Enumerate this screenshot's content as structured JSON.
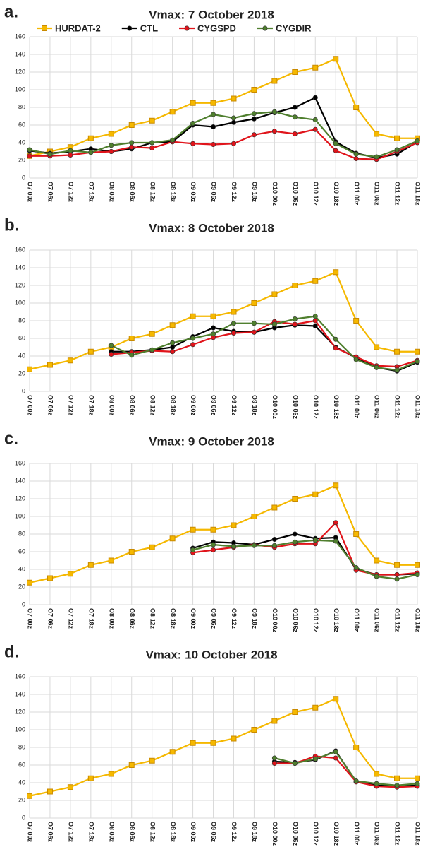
{
  "chart_data": [
    {
      "type": "line",
      "label": "a.",
      "title": "Vmax: 7 October 2018",
      "legend": true,
      "grid": true,
      "categories": [
        "O7 00z",
        "O7 06z",
        "O7 12z",
        "O7 18z",
        "O8 00z",
        "O8 06z",
        "O8 12z",
        "O8 18z",
        "O9 00z",
        "O9 06z",
        "O9 12z",
        "O9 18z",
        "O10 00z",
        "O10 06z",
        "O10 12z",
        "O10 18z",
        "O11 00z",
        "O11 06z",
        "O11 12z",
        "O11 18z"
      ],
      "ylim": [
        0,
        160
      ],
      "yticks": [
        0,
        20,
        40,
        60,
        80,
        100,
        120,
        140,
        160
      ],
      "series": [
        {
          "name": "HURDAT-2",
          "color": "#f5b800",
          "marker": "square",
          "values": [
            25,
            30,
            35,
            45,
            50,
            60,
            65,
            75,
            85,
            85,
            90,
            100,
            110,
            120,
            125,
            135,
            80,
            50,
            45,
            45
          ]
        },
        {
          "name": "CTL",
          "color": "#000000",
          "marker": "circle",
          "values": [
            31,
            28,
            30,
            33,
            30,
            33,
            40,
            41,
            60,
            58,
            63,
            67,
            74,
            80,
            91,
            41,
            28,
            23,
            27,
            41
          ]
        },
        {
          "name": "CYGSPD",
          "color": "#e0141b",
          "marker": "circle",
          "values": [
            25,
            25,
            26,
            29,
            30,
            35,
            34,
            41,
            39,
            38,
            39,
            49,
            53,
            50,
            55,
            31,
            22,
            21,
            30,
            40
          ]
        },
        {
          "name": "CYGDIR",
          "color": "#4f7f2e",
          "marker": "circle",
          "values": [
            32,
            27,
            31,
            29,
            37,
            40,
            40,
            43,
            62,
            72,
            68,
            73,
            75,
            69,
            66,
            39,
            27,
            24,
            32,
            42
          ]
        }
      ]
    },
    {
      "type": "line",
      "label": "b.",
      "title": "Vmax: 8 October 2018",
      "legend": false,
      "grid": true,
      "categories": [
        "O7 00z",
        "O7 06z",
        "O7 12z",
        "O7 18z",
        "O8 00z",
        "O8 06z",
        "O8 12z",
        "O8 18z",
        "O9 00z",
        "O9 06z",
        "O9 12z",
        "O9 18z",
        "O10 00z",
        "O10 06z",
        "O10 12z",
        "O10 18z",
        "O11 00z",
        "O11 06z",
        "O11 12z",
        "O11 18z"
      ],
      "ylim": [
        0,
        160
      ],
      "yticks": [
        0,
        20,
        40,
        60,
        80,
        100,
        120,
        140,
        160
      ],
      "series": [
        {
          "color": "#f5b800",
          "marker": "square",
          "values": [
            25,
            30,
            35,
            45,
            50,
            60,
            65,
            75,
            85,
            85,
            90,
            100,
            110,
            120,
            125,
            135,
            80,
            50,
            45,
            45
          ]
        },
        {
          "color": "#000000",
          "marker": "circle",
          "values": [
            null,
            null,
            null,
            null,
            45,
            45,
            47,
            50,
            62,
            72,
            68,
            67,
            72,
            75,
            74,
            50,
            38,
            27,
            23,
            33
          ]
        },
        {
          "color": "#e0141b",
          "marker": "circle",
          "values": [
            null,
            null,
            null,
            null,
            42,
            44,
            46,
            45,
            53,
            61,
            66,
            67,
            79,
            76,
            80,
            49,
            39,
            29,
            28,
            35
          ]
        },
        {
          "color": "#4f7f2e",
          "marker": "circle",
          "values": [
            null,
            null,
            null,
            null,
            52,
            41,
            47,
            55,
            60,
            65,
            77,
            77,
            76,
            82,
            85,
            59,
            36,
            27,
            24,
            34
          ]
        }
      ]
    },
    {
      "type": "line",
      "label": "c.",
      "title": "Vmax: 9 October 2018",
      "legend": false,
      "grid": true,
      "categories": [
        "O7 00z",
        "O7 06z",
        "O7 12z",
        "O7 18z",
        "O8 00z",
        "O8 06z",
        "O8 12z",
        "O8 18z",
        "O9 00z",
        "O9 06z",
        "O9 12z",
        "O9 18z",
        "O10 00z",
        "O10 06z",
        "O10 12z",
        "O10 18z",
        "O11 00z",
        "O11 06z",
        "O11 12z",
        "O11 18z"
      ],
      "ylim": [
        0,
        160
      ],
      "yticks": [
        0,
        20,
        40,
        60,
        80,
        100,
        120,
        140,
        160
      ],
      "series": [
        {
          "color": "#f5b800",
          "marker": "square",
          "values": [
            25,
            30,
            35,
            45,
            50,
            60,
            65,
            75,
            85,
            85,
            90,
            100,
            110,
            120,
            125,
            135,
            80,
            50,
            45,
            45
          ]
        },
        {
          "color": "#000000",
          "marker": "circle",
          "values": [
            null,
            null,
            null,
            null,
            null,
            null,
            null,
            null,
            64,
            71,
            70,
            68,
            74,
            80,
            75,
            76,
            40,
            34,
            34,
            35
          ]
        },
        {
          "color": "#e0141b",
          "marker": "circle",
          "values": [
            null,
            null,
            null,
            null,
            null,
            null,
            null,
            null,
            59,
            62,
            65,
            68,
            65,
            69,
            69,
            93,
            39,
            34,
            34,
            36
          ]
        },
        {
          "color": "#4f7f2e",
          "marker": "circle",
          "values": [
            null,
            null,
            null,
            null,
            null,
            null,
            null,
            null,
            62,
            68,
            66,
            67,
            67,
            71,
            73,
            72,
            42,
            32,
            29,
            34
          ]
        }
      ]
    },
    {
      "type": "line",
      "label": "d.",
      "title": "Vmax: 10 October 2018",
      "legend": false,
      "grid": true,
      "categories": [
        "O7 00z",
        "O7 06z",
        "O7 12z",
        "O7 18z",
        "O8 00z",
        "O8 06z",
        "O8 12z",
        "O8 18z",
        "O9 00z",
        "O9 06z",
        "O9 12z",
        "O9 18z",
        "O10 00z",
        "O10 06z",
        "O10 12z",
        "O10 18z",
        "O11 00z",
        "O11 06z",
        "O11 12z",
        "O11 18z"
      ],
      "ylim": [
        0,
        160
      ],
      "yticks": [
        0,
        20,
        40,
        60,
        80,
        100,
        120,
        140,
        160
      ],
      "series": [
        {
          "color": "#f5b800",
          "marker": "square",
          "values": [
            25,
            30,
            35,
            45,
            50,
            60,
            65,
            75,
            85,
            85,
            90,
            100,
            110,
            120,
            125,
            135,
            80,
            50,
            45,
            45
          ]
        },
        {
          "color": "#000000",
          "marker": "circle",
          "values": [
            null,
            null,
            null,
            null,
            null,
            null,
            null,
            null,
            null,
            null,
            null,
            null,
            64,
            63,
            66,
            76,
            41,
            37,
            36,
            37
          ]
        },
        {
          "color": "#e0141b",
          "marker": "circle",
          "values": [
            null,
            null,
            null,
            null,
            null,
            null,
            null,
            null,
            null,
            null,
            null,
            null,
            62,
            62,
            70,
            68,
            41,
            36,
            35,
            36
          ]
        },
        {
          "color": "#4f7f2e",
          "marker": "circle",
          "values": [
            null,
            null,
            null,
            null,
            null,
            null,
            null,
            null,
            null,
            null,
            null,
            null,
            68,
            62,
            67,
            75,
            42,
            39,
            37,
            39
          ]
        }
      ]
    }
  ]
}
